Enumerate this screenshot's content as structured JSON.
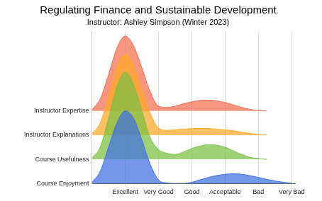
{
  "chart_data": {
    "type": "ridgeline",
    "title": "Regulating Finance and Sustainable Development",
    "subtitle": "Instructor: Ashley Simpson (Winter 2023)",
    "x": [
      0,
      0.25,
      0.5,
      0.75,
      1,
      1.25,
      1.5,
      1.75,
      2,
      2.25,
      2.5,
      2.75,
      3,
      3.25,
      3.5,
      3.75,
      4,
      4.25,
      4.5,
      4.75,
      5,
      5.25,
      5.5,
      5.75,
      6
    ],
    "xlim": [
      0,
      6.1
    ],
    "xticks": [
      {
        "value": 1,
        "label": "Excellent"
      },
      {
        "value": 2,
        "label": "Very Good"
      },
      {
        "value": 3,
        "label": "Good"
      },
      {
        "value": 4,
        "label": "Acceptable"
      },
      {
        "value": 5,
        "label": "Bad"
      },
      {
        "value": 6,
        "label": "Very Bad"
      }
    ],
    "ylim": [
      0,
      6.3
    ],
    "yticks": [
      {
        "value": 0,
        "label": "Course Enjoyment"
      },
      {
        "value": 1,
        "label": "Course Usefulness"
      },
      {
        "value": 2,
        "label": "Instructor Explanations"
      },
      {
        "value": 3,
        "label": "Instructor Expertise"
      }
    ],
    "grid": true,
    "series": [
      {
        "name": "Instructor Expertise",
        "color": "#f26d50",
        "values": [
          0.05,
          0.5,
          1.5,
          2.6,
          3.1,
          2.7,
          1.8,
          0.8,
          0.2,
          0.15,
          0.2,
          0.3,
          0.38,
          0.44,
          0.45,
          0.42,
          0.35,
          0.25,
          0.15,
          0.07,
          0.02,
          0,
          null,
          null,
          null
        ]
      },
      {
        "name": "Instructor Explanations",
        "color": "#ffa826",
        "values": [
          0.05,
          0.5,
          1.6,
          2.8,
          3.35,
          2.9,
          1.9,
          0.9,
          0.3,
          0.2,
          0.22,
          0.25,
          0.27,
          0.28,
          0.27,
          0.25,
          0.22,
          0.18,
          0.12,
          0.07,
          0.03,
          0,
          null,
          null,
          null
        ]
      },
      {
        "name": "Course Usefulness",
        "color": "#7ac143",
        "values": [
          0.05,
          0.5,
          1.7,
          3.0,
          3.6,
          3.1,
          2.0,
          0.9,
          0.4,
          0.25,
          0.2,
          0.3,
          0.45,
          0.55,
          0.6,
          0.58,
          0.5,
          0.35,
          0.2,
          0.08,
          0.03,
          0,
          null,
          null,
          null
        ]
      },
      {
        "name": "Course Enjoyment",
        "color": "#3f6fe3",
        "values": [
          0.05,
          0.5,
          1.5,
          2.5,
          3.0,
          2.7,
          1.8,
          0.8,
          0.15,
          0.02,
          0,
          0,
          0.05,
          0.15,
          0.25,
          0.33,
          0.38,
          0.4,
          0.38,
          0.32,
          0.25,
          0.17,
          0.1,
          0.05,
          0.01
        ]
      }
    ]
  }
}
